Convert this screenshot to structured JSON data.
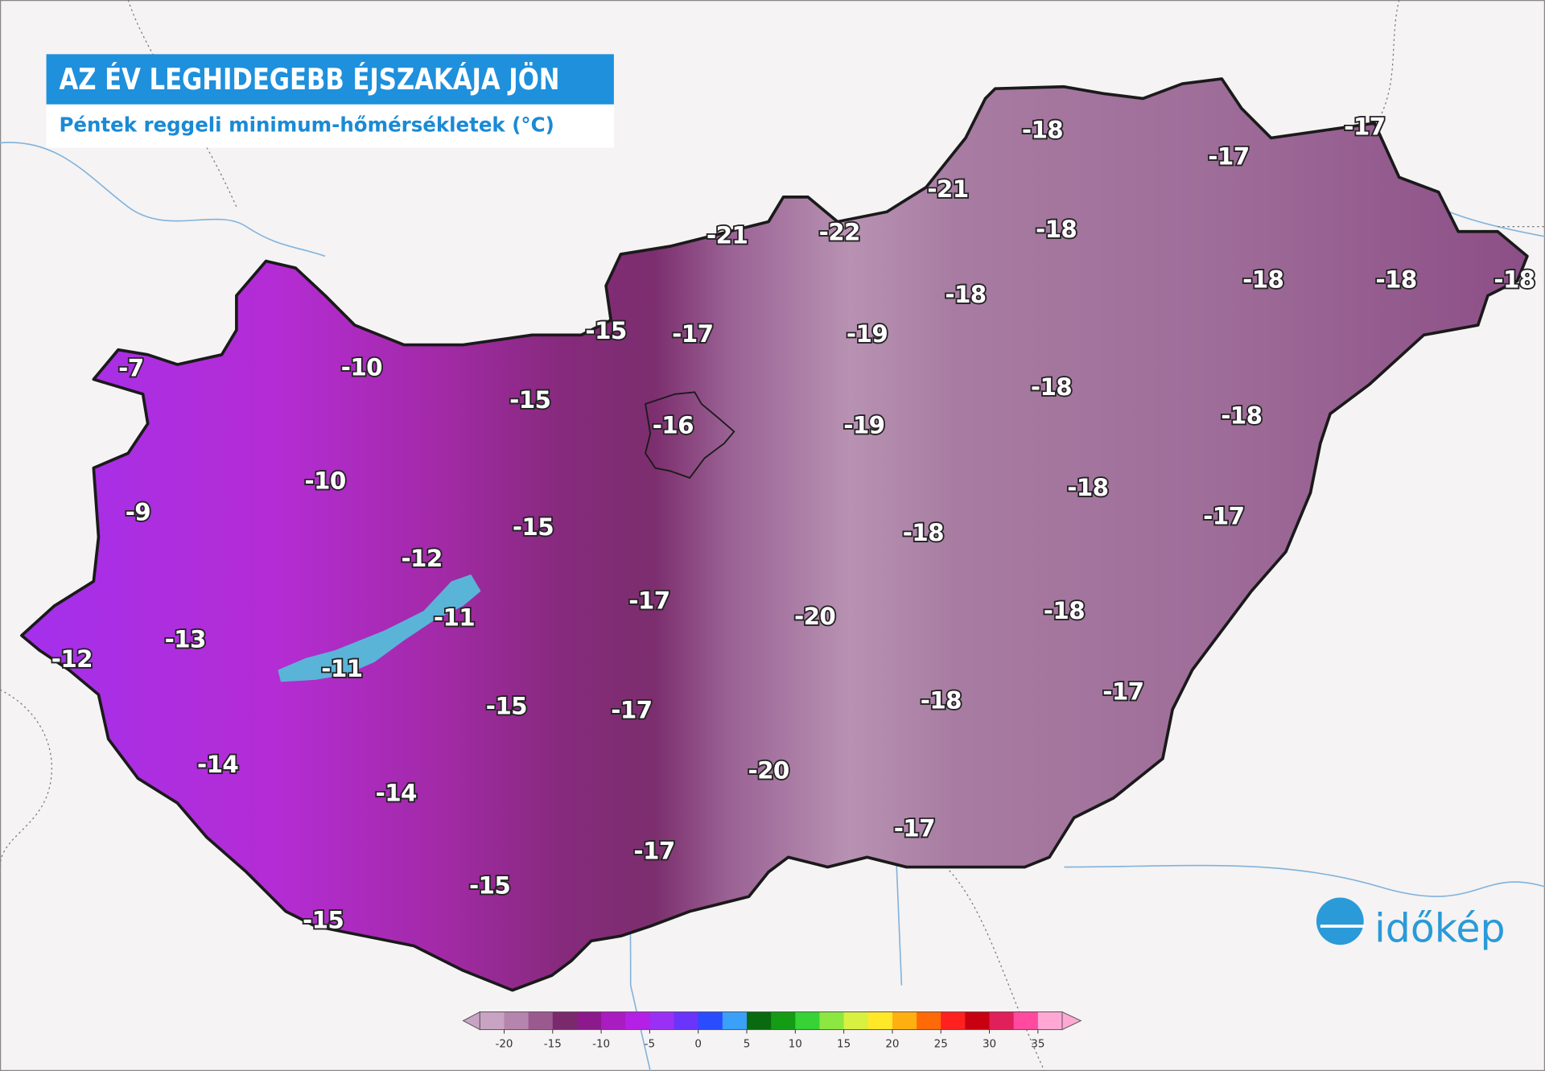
{
  "header": {
    "title": "AZ ÉV LEGHIDEGEBB ÉJSZAKÁJA JÖN",
    "subtitle": "Péntek reggeli minimum-hőmérsékletek (°C)"
  },
  "labels": [
    -18,
    -17,
    -17,
    -21,
    -21,
    -22,
    -18,
    -18,
    -18,
    -18,
    -18,
    -15,
    -17,
    -19,
    -7,
    -10,
    -15,
    -18,
    -18,
    -16,
    -19,
    -10,
    -9,
    -15,
    -18,
    -17,
    -18,
    -12,
    -17,
    -20,
    -18,
    -11,
    -13,
    -12,
    -11,
    -17,
    -18,
    -15,
    -17,
    -20,
    -14,
    -14,
    -17,
    -17,
    -15,
    -15
  ],
  "colorbar": {
    "lim": [
      -22.5,
      37.5
    ],
    "ticks": [
      -20,
      -15,
      -10,
      -5,
      0,
      5,
      10,
      15,
      20,
      25,
      30,
      35
    ],
    "colors": [
      "#c9a3c3",
      "#b585ad",
      "#9a5a90",
      "#7a2a6c",
      "#8c1a8c",
      "#a81cc0",
      "#b420e6",
      "#9a30f4",
      "#6a34fa",
      "#2a4cff",
      "#3aa0f8",
      "#0a6a10",
      "#149c14",
      "#36d236",
      "#8ce840",
      "#d8f040",
      "#ffe828",
      "#ffb010",
      "#ff6a08",
      "#ff2020",
      "#c80010",
      "#e0205a",
      "#ff4aa0",
      "#ffa8d4"
    ]
  },
  "logo": {
    "text": "időkép"
  }
}
